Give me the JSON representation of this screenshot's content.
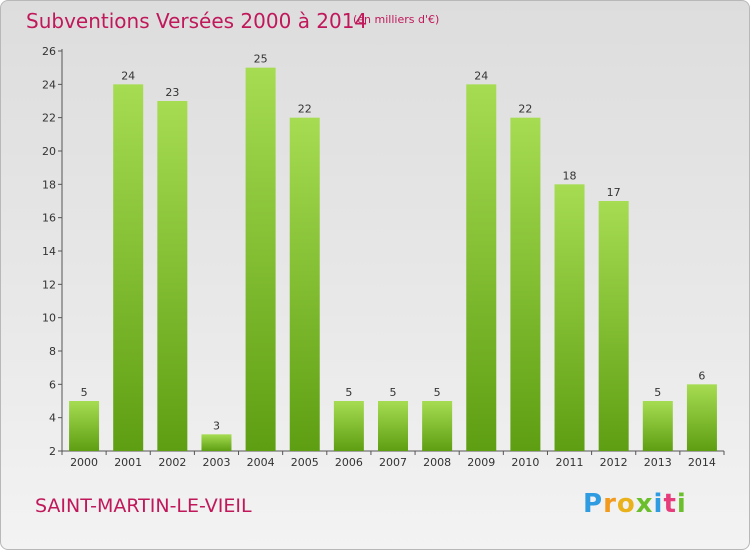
{
  "header": {
    "title": "Subventions Versées 2000 à 2014",
    "unit": "(en milliers d'€)"
  },
  "footer": {
    "commune": "SAINT-MARTIN-LE-VIEIL",
    "logo": "Proxiti"
  },
  "colors": {
    "title": "#c0185a",
    "bar_light": "#a6dc52",
    "bar_dark": "#5e9e12",
    "axis": "#555555"
  },
  "chart_data": {
    "type": "bar",
    "title": "Subventions Versées 2000 à 2014",
    "xlabel": "",
    "ylabel": "",
    "categories": [
      "2000",
      "2001",
      "2002",
      "2003",
      "2004",
      "2005",
      "2006",
      "2007",
      "2008",
      "2009",
      "2010",
      "2011",
      "2012",
      "2013",
      "2014"
    ],
    "values": [
      5,
      24,
      23,
      3,
      25,
      22,
      5,
      5,
      5,
      24,
      22,
      18,
      17,
      5,
      6
    ],
    "ylim": [
      2,
      26
    ],
    "yticks": [
      2,
      4,
      6,
      8,
      10,
      12,
      14,
      16,
      18,
      20,
      22,
      24,
      26
    ],
    "grid": false,
    "legend": "none"
  }
}
